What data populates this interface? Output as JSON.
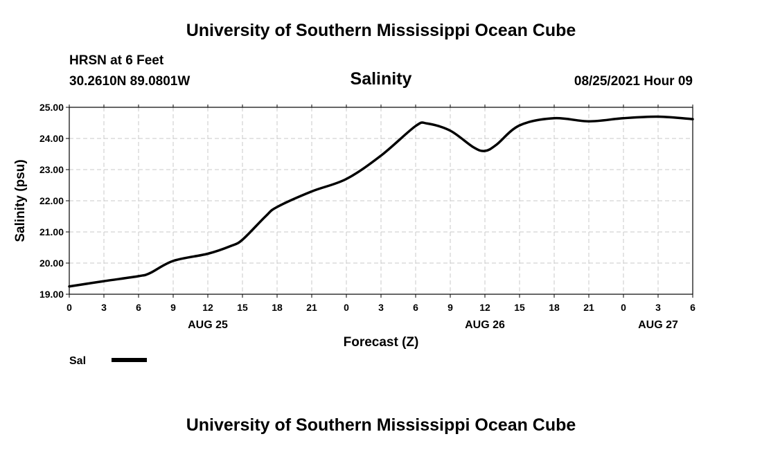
{
  "header": {
    "title": "University of Southern Mississippi Ocean Cube",
    "station": "HRSN at 6 Feet",
    "coords": "30.2610N  89.0801W",
    "variable": "Salinity",
    "datetime": "08/25/2021 Hour 09"
  },
  "footer": {
    "title": "University of Southern Mississippi Ocean Cube"
  },
  "legend": {
    "label": "Sal"
  },
  "chart_data": {
    "type": "line",
    "title": "Salinity",
    "xlabel": "Forecast (Z)",
    "ylabel": "Salinity (psu)",
    "ylim": [
      19.0,
      25.0
    ],
    "yticks": [
      "19.00",
      "20.00",
      "21.00",
      "22.00",
      "23.00",
      "24.00",
      "25.00"
    ],
    "xlim": [
      "2021-08-25 00:00",
      "2021-08-27 06:00"
    ],
    "xticks": [
      "0",
      "3",
      "6",
      "9",
      "12",
      "15",
      "18",
      "21",
      "0",
      "3",
      "6",
      "9",
      "12",
      "15",
      "18",
      "21",
      "0",
      "3",
      "6"
    ],
    "date_labels": [
      {
        "text": "AUG 25",
        "at": "2021-08-25 12:00"
      },
      {
        "text": "AUG 26",
        "at": "2021-08-26 12:00"
      },
      {
        "text": "AUG 27",
        "at": "2021-08-27 03:00"
      }
    ],
    "grid": true,
    "legend_position": "bottom-left",
    "series": [
      {
        "name": "Sal",
        "color": "#000000",
        "x": [
          "2021-08-25 00:00",
          "2021-08-25 03:00",
          "2021-08-25 06:00",
          "2021-08-25 07:00",
          "2021-08-25 09:00",
          "2021-08-25 12:00",
          "2021-08-25 14:00",
          "2021-08-25 15:00",
          "2021-08-25 17:00",
          "2021-08-25 18:00",
          "2021-08-25 21:00",
          "2021-08-26 00:00",
          "2021-08-26 03:00",
          "2021-08-26 06:00",
          "2021-08-26 07:00",
          "2021-08-26 09:00",
          "2021-08-26 11:00",
          "2021-08-26 12:00",
          "2021-08-26 13:00",
          "2021-08-26 15:00",
          "2021-08-26 18:00",
          "2021-08-26 21:00",
          "2021-08-27 00:00",
          "2021-08-27 03:00",
          "2021-08-27 06:00"
        ],
        "values": [
          19.25,
          19.42,
          19.58,
          19.68,
          20.07,
          20.3,
          20.55,
          20.75,
          21.5,
          21.8,
          22.3,
          22.7,
          23.45,
          24.4,
          24.48,
          24.25,
          23.72,
          23.6,
          23.8,
          24.42,
          24.65,
          24.55,
          24.65,
          24.7,
          24.62
        ]
      }
    ]
  }
}
